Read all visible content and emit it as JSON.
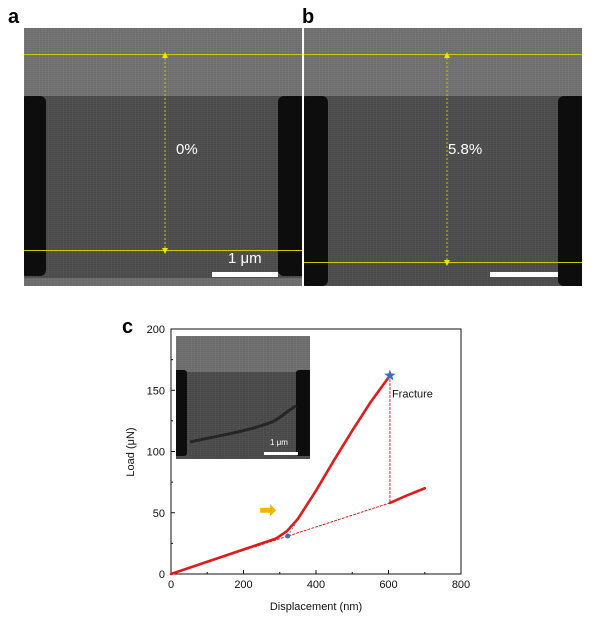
{
  "panels": {
    "a": {
      "letter": "a",
      "strain_label": "0%",
      "scalebar_label": "1 μm"
    },
    "b": {
      "letter": "b",
      "strain_label": "5.8%",
      "scalebar_label": ""
    },
    "c": {
      "letter": "c"
    }
  },
  "inset": {
    "scalebar_label": "1 μm"
  },
  "colors": {
    "curve": "#e01b1b",
    "marker": "#3d6bbf",
    "arrow": "#f5b400",
    "guide": "#c8c800"
  },
  "chart_data": {
    "type": "line",
    "xlabel": "Displacement (nm)",
    "ylabel": "Load (μN)",
    "xlim": [
      0,
      800
    ],
    "ylim": [
      0,
      200
    ],
    "xticks": [
      0,
      200,
      400,
      600,
      800
    ],
    "yticks": [
      0,
      50,
      100,
      150,
      200
    ],
    "grid": false,
    "series": [
      {
        "style": "solid",
        "x": [
          0,
          50,
          100,
          150,
          200,
          250,
          290,
          320,
          350,
          400,
          450,
          500,
          550,
          604
        ],
        "y": [
          0,
          5,
          10,
          15,
          20,
          25,
          29,
          35,
          45,
          68,
          93,
          117,
          140,
          162
        ]
      },
      {
        "style": "solid",
        "x": [
          604,
          650,
          700
        ],
        "y": [
          58,
          64,
          70
        ]
      },
      {
        "style": "dotted",
        "x": [
          0,
          604
        ],
        "y": [
          0,
          58
        ]
      },
      {
        "style": "dotted",
        "x": [
          604,
          604
        ],
        "y": [
          162,
          58
        ]
      }
    ],
    "annotations": {
      "fracture": {
        "label": "Fracture",
        "x": 604,
        "y": 162
      },
      "yield_point": {
        "x": 322,
        "y": 31
      },
      "arrow_point": {
        "x": 290,
        "y": 52
      }
    }
  }
}
